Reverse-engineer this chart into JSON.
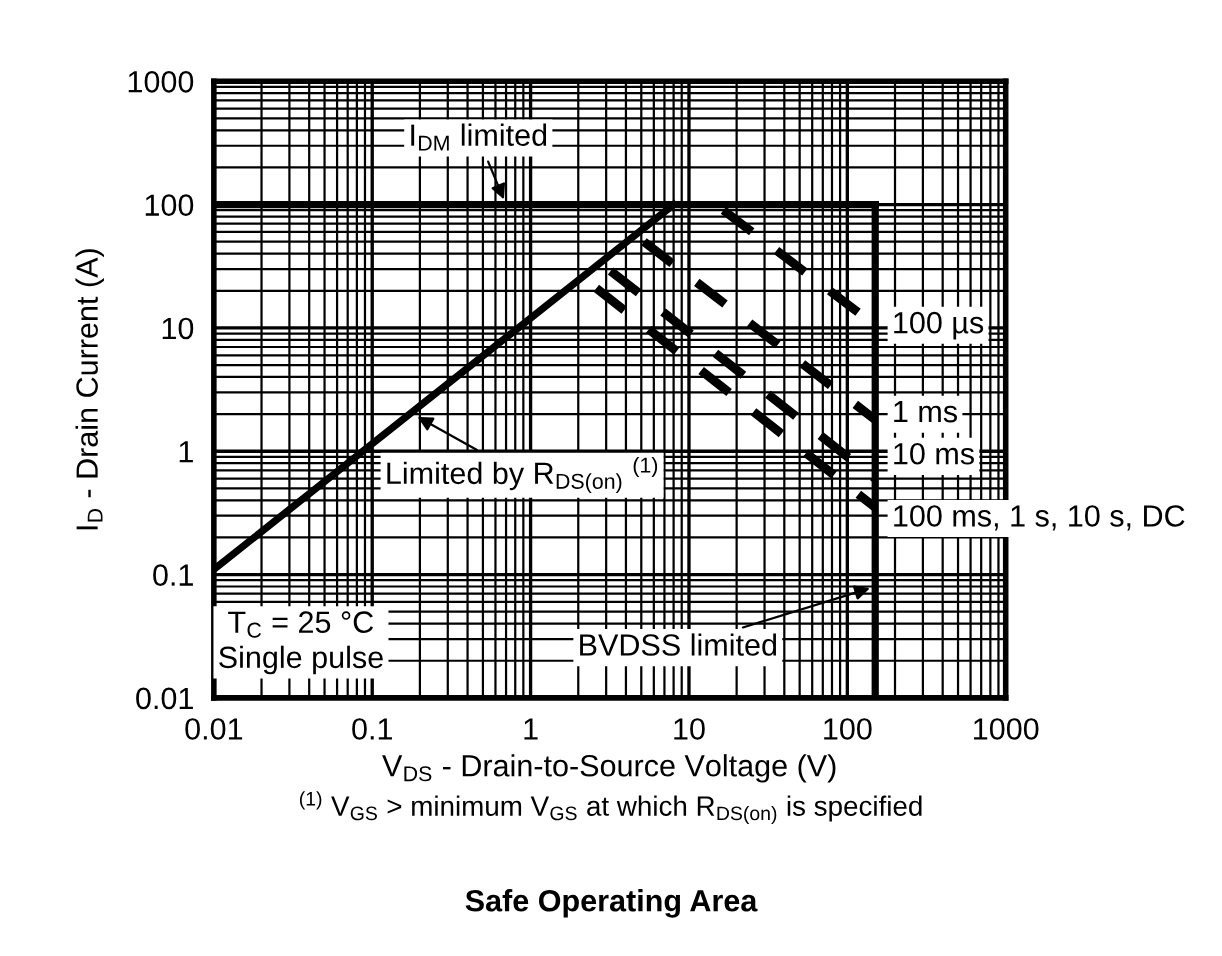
{
  "chart_data": {
    "type": "line",
    "title": "Safe Operating Area",
    "xlabel": "V$_{DS}$ - Drain-to-Source Voltage (V)",
    "ylabel": "I$_{D}$ - Drain Current (A)",
    "log": "xy",
    "xlim": [
      0.01,
      1000
    ],
    "ylim": [
      0.01,
      1000
    ],
    "xticks": [
      0.01,
      0.1,
      1,
      10,
      100,
      1000
    ],
    "yticks": [
      0.01,
      0.1,
      1,
      10,
      100,
      1000
    ],
    "grid": true,
    "series": [
      {
        "color": "#000000",
        "line_style": "solid",
        "x": [
          0.01,
          8
        ],
        "values": [
          0.11,
          100
        ]
      },
      {
        "color": "#000000",
        "line_style": "solid",
        "x": [
          0.01,
          150
        ],
        "values": [
          100,
          100
        ]
      },
      {
        "color": "#000000",
        "line_style": "solid",
        "x": [
          150,
          150
        ],
        "values": [
          0.01,
          100
        ]
      },
      {
        "color": "#000000",
        "line_style": "dashed",
        "x": [
          16.5,
          150
        ],
        "values": [
          90,
          10.5
        ]
      },
      {
        "color": "#000000",
        "line_style": "dashed",
        "x": [
          5.2,
          150
        ],
        "values": [
          50,
          1.8
        ]
      },
      {
        "color": "#000000",
        "line_style": "dashed",
        "x": [
          3.2,
          150
        ],
        "values": [
          29,
          0.6
        ]
      },
      {
        "color": "#000000",
        "line_style": "dashed",
        "x": [
          2.6,
          150
        ],
        "values": [
          21,
          0.35
        ]
      }
    ],
    "annotations": [
      {
        "text": "I$_{DM}$ limited",
        "x": 0.7,
        "y": 100
      },
      {
        "text": "Limited by R$_{DS(on)}$ $^{(1)}$",
        "x": 0.18,
        "y": 2
      },
      {
        "text": "BVDSS limited",
        "x": 150,
        "y": 0.08
      },
      "T$_{C}$ = 25 °C\nSingle pulse",
      {
        "text": "100 µs",
        "x": 150,
        "y": 10.5
      },
      {
        "text": "1 ms",
        "x": 150,
        "y": 1.8
      },
      {
        "text": "10 ms",
        "x": 150,
        "y": 0.6
      },
      {
        "text": "100 ms, 1 s, 10 s, DC",
        "x": 150,
        "y": 0.35
      },
      "$^{(1)}$ V$_{GS}$ > minimum V$_{GS}$ at which R$_{DS(on)}$ is specified"
    ]
  }
}
